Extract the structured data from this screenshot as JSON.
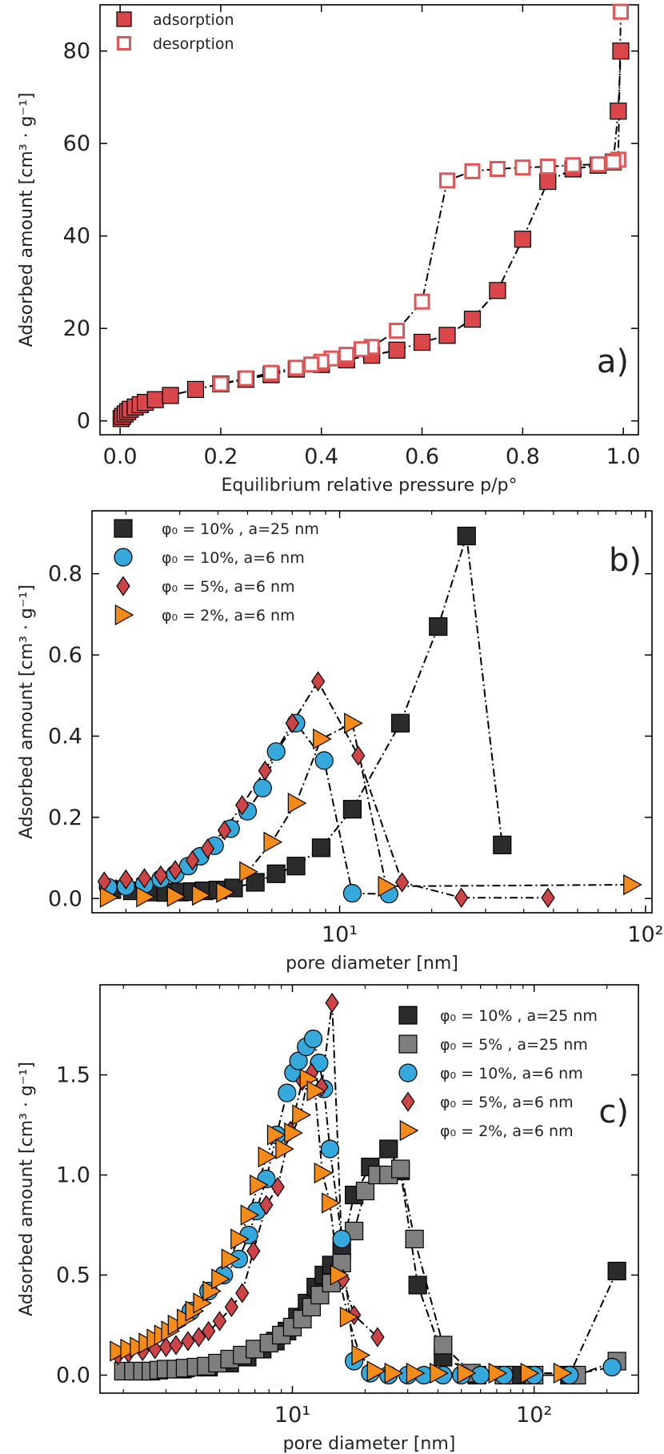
{
  "colors": {
    "adsorption": "#d9474b",
    "desorption_edge": "#e05555",
    "black": "#2b2b2b",
    "grey": "#7f7f7f",
    "blue": "#35a9dc",
    "red": "#cd4448",
    "orange": "#f48a17"
  },
  "chart_data": [
    {
      "type": "scatter",
      "panel_label": "a)",
      "xlabel": "Equilibrium relative pressure p/p°",
      "ylabel": "Adsorbed amount  [cm³ · g⁻¹]",
      "xscale": "linear",
      "xlim": [
        -0.04,
        1.03
      ],
      "ylim": [
        -3,
        90
      ],
      "xticks": [
        0.0,
        0.2,
        0.4,
        0.6,
        0.8,
        1.0
      ],
      "xtick_labels": [
        "0.0",
        "0.2",
        "0.4",
        "0.6",
        "0.8",
        "1.0"
      ],
      "yticks": [
        0,
        20,
        40,
        60,
        80
      ],
      "ytick_labels": [
        "0",
        "20",
        "40",
        "60",
        "80"
      ],
      "legend_position": "top-left",
      "series": [
        {
          "name": "adsorption",
          "marker": "square-filled",
          "color": "#d9474b",
          "x": [
            0.002,
            0.005,
            0.01,
            0.015,
            0.02,
            0.03,
            0.04,
            0.05,
            0.07,
            0.1,
            0.15,
            0.2,
            0.25,
            0.3,
            0.35,
            0.4,
            0.45,
            0.5,
            0.55,
            0.6,
            0.65,
            0.7,
            0.75,
            0.8,
            0.85,
            0.9,
            0.95,
            0.98,
            0.99,
            0.995
          ],
          "y": [
            0.5,
            1.0,
            1.5,
            2.0,
            2.5,
            3.0,
            3.5,
            4.0,
            4.6,
            5.5,
            6.8,
            8.0,
            9.0,
            10.0,
            11.2,
            12.2,
            13.2,
            14.2,
            15.3,
            17.0,
            18.5,
            22.0,
            28.2,
            39.3,
            51.8,
            54.5,
            55.3,
            56.0,
            67.0,
            80.0
          ]
        },
        {
          "name": "desorption",
          "marker": "square-open",
          "color": "#e05555",
          "x": [
            0.995,
            0.99,
            0.98,
            0.95,
            0.9,
            0.85,
            0.8,
            0.75,
            0.7,
            0.65,
            0.6,
            0.55,
            0.5,
            0.48,
            0.45,
            0.42,
            0.4,
            0.38,
            0.35,
            0.3,
            0.25,
            0.2
          ],
          "y": [
            88.5,
            56.5,
            56.0,
            55.5,
            55.3,
            55.0,
            54.8,
            54.5,
            54.0,
            52.0,
            25.8,
            19.5,
            16.0,
            15.5,
            14.3,
            13.5,
            12.8,
            12.2,
            11.5,
            10.4,
            9.2,
            8.0
          ]
        }
      ]
    },
    {
      "type": "scatter",
      "panel_label": "b)",
      "xlabel": "pore diameter  [nm]",
      "ylabel": "Adsorbed amount  [cm³ · g⁻¹]",
      "xscale": "log",
      "xlim": [
        1.55,
        105
      ],
      "ylim": [
        -0.035,
        0.955
      ],
      "xticks": [
        10,
        100
      ],
      "xtick_labels": [
        "10¹",
        "10²"
      ],
      "yticks": [
        0.0,
        0.2,
        0.4,
        0.6,
        0.8
      ],
      "ytick_labels": [
        "0.0",
        "0.2",
        "0.4",
        "0.6",
        "0.8"
      ],
      "legend_position": "top-left",
      "series": [
        {
          "name": "φ₀ = 10% , a=25 nm",
          "marker": "square",
          "color": "#2b2b2b",
          "x": [
            1.8,
            2.1,
            2.4,
            2.7,
            3.0,
            3.3,
            3.6,
            4.0,
            4.5,
            5.3,
            6.2,
            7.2,
            8.7,
            11.0,
            15.8,
            21.0,
            26.0,
            34.0
          ],
          "y": [
            0.022,
            0.019,
            0.016,
            0.015,
            0.016,
            0.017,
            0.019,
            0.021,
            0.026,
            0.04,
            0.061,
            0.08,
            0.125,
            0.22,
            0.432,
            0.67,
            0.893,
            0.132
          ]
        },
        {
          "name": "φ₀ = 10%, a=6 nm",
          "marker": "circle",
          "color": "#35a9dc",
          "x": [
            1.75,
            2.0,
            2.3,
            2.6,
            2.9,
            3.2,
            3.5,
            3.9,
            4.4,
            5.0,
            5.6,
            6.2,
            7.2,
            8.9,
            11.0,
            14.5
          ],
          "y": [
            0.028,
            0.03,
            0.035,
            0.048,
            0.06,
            0.08,
            0.104,
            0.13,
            0.172,
            0.215,
            0.272,
            0.362,
            0.432,
            0.34,
            0.013,
            0.011
          ]
        },
        {
          "name": "φ₀ = 5%, a=6 nm",
          "marker": "diamond",
          "color": "#cd4448",
          "x": [
            1.7,
            2.0,
            2.3,
            2.6,
            2.9,
            3.3,
            3.7,
            4.2,
            4.8,
            5.7,
            7.0,
            8.5,
            11.5,
            16.0,
            25.0,
            48.0
          ],
          "y": [
            0.042,
            0.047,
            0.05,
            0.057,
            0.07,
            0.094,
            0.123,
            0.168,
            0.23,
            0.315,
            0.432,
            0.535,
            0.352,
            0.04,
            0.002,
            0.002
          ]
        },
        {
          "name": "φ₀ = 2%, a=6 nm",
          "marker": "triangle-right",
          "color": "#f48a17",
          "x": [
            1.75,
            2.3,
            2.9,
            3.5,
            4.2,
            5.0,
            6.0,
            7.2,
            8.7,
            11.0,
            14.2,
            90.0
          ],
          "y": [
            0.003,
            0.004,
            0.005,
            0.008,
            0.015,
            0.066,
            0.139,
            0.235,
            0.393,
            0.432,
            0.03,
            0.034
          ]
        }
      ]
    },
    {
      "type": "scatter",
      "panel_label": "c)",
      "xlabel": "pore diameter  [nm]",
      "ylabel": "Adsorbed amount  [cm³ · g⁻¹]",
      "xscale": "log",
      "xlim": [
        1.6,
        270
      ],
      "ylim": [
        -0.09,
        1.95
      ],
      "xticks": [
        10,
        100
      ],
      "xtick_labels": [
        "10¹",
        "10²"
      ],
      "yticks": [
        0.0,
        0.5,
        1.0,
        1.5
      ],
      "ytick_labels": [
        "0.0",
        "0.5",
        "1.0",
        "1.5"
      ],
      "legend_position": "top-right",
      "series": [
        {
          "name": "φ₀ = 10% , a=25 nm",
          "marker": "square",
          "color": "#2b2b2b",
          "x": [
            2.5,
            3.5,
            4.5,
            5.5,
            6.5,
            7.5,
            8.5,
            9.5,
            10.5,
            11.5,
            12.5,
            13.5,
            14.5,
            16,
            18,
            21,
            25,
            28,
            33,
            42,
            58,
            85,
            140,
            220
          ],
          "y": [
            0.02,
            0.03,
            0.04,
            0.06,
            0.09,
            0.13,
            0.17,
            0.22,
            0.29,
            0.36,
            0.44,
            0.5,
            0.55,
            0.62,
            0.9,
            1.04,
            1.13,
            1.02,
            0.45,
            0.09,
            0.0,
            0.0,
            0.0,
            0.52
          ]
        },
        {
          "name": "φ₀ = 5% , a=25 nm",
          "marker": "square",
          "color": "#7f7f7f",
          "x": [
            2.0,
            2.2,
            2.4,
            2.6,
            2.8,
            3.0,
            3.3,
            3.6,
            4.0,
            4.4,
            4.9,
            5.5,
            6.2,
            7.0,
            8.0,
            9.0,
            10.0,
            11.0,
            12.0,
            13.0,
            14.5,
            16.0,
            18.0,
            20.0,
            22.5,
            25.0,
            28.0,
            32.0,
            42.0,
            55.0,
            75.0,
            100.0,
            150.0,
            220.0
          ],
          "y": [
            0.02,
            0.02,
            0.02,
            0.02,
            0.025,
            0.03,
            0.03,
            0.035,
            0.04,
            0.045,
            0.06,
            0.08,
            0.1,
            0.13,
            0.16,
            0.2,
            0.24,
            0.28,
            0.34,
            0.4,
            0.46,
            0.56,
            0.72,
            0.92,
            1.0,
            1.0,
            1.03,
            0.68,
            0.15,
            0.01,
            0.0,
            0.0,
            0.0,
            0.07
          ]
        },
        {
          "name": "φ₀ = 10%, a=6 nm",
          "marker": "circle",
          "color": "#35a9dc",
          "x": [
            3.8,
            4.5,
            5.2,
            6.0,
            6.6,
            7.1,
            7.8,
            8.6,
            9.5,
            10.1,
            10.6,
            11.4,
            12.2,
            12.9,
            13.5,
            14.3,
            16.0,
            18.0,
            21.0,
            25.0,
            30.0,
            35.0,
            42.0,
            50.0,
            60.0,
            75.0,
            100.0,
            140.0,
            210.0
          ],
          "y": [
            0.32,
            0.42,
            0.5,
            0.58,
            0.7,
            0.82,
            0.98,
            1.2,
            1.41,
            1.51,
            1.57,
            1.64,
            1.68,
            1.56,
            1.43,
            1.13,
            0.68,
            0.07,
            0.01,
            0.0,
            0.0,
            0.0,
            0.0,
            0.0,
            0.0,
            0.0,
            0.0,
            0.0,
            0.04
          ]
        },
        {
          "name": "φ₀ = 5%, a=6 nm",
          "marker": "diamond",
          "color": "#cd4448",
          "x": [
            1.9,
            2.1,
            2.4,
            2.7,
            3.0,
            3.3,
            3.7,
            4.1,
            4.5,
            5.0,
            5.6,
            6.2,
            6.9,
            7.8,
            8.7,
            9.8,
            11.0,
            12.0,
            13.2,
            14.6,
            16.2,
            18.0,
            22.5
          ],
          "y": [
            0.1,
            0.11,
            0.12,
            0.13,
            0.14,
            0.15,
            0.17,
            0.19,
            0.22,
            0.27,
            0.34,
            0.41,
            0.62,
            0.85,
            0.94,
            1.22,
            1.47,
            1.51,
            1.44,
            1.86,
            0.48,
            0.3,
            0.19
          ]
        },
        {
          "name": "φ₀ = 2%, a=6 nm",
          "marker": "triangle-right",
          "color": "#f48a17",
          "x": [
            1.9,
            2.1,
            2.3,
            2.5,
            2.7,
            2.9,
            3.1,
            3.3,
            3.6,
            3.9,
            4.2,
            4.6,
            5.0,
            5.5,
            6.0,
            6.6,
            7.2,
            7.8,
            8.5,
            9.2,
            10.0,
            10.8,
            11.6,
            12.4,
            13.3,
            14.3,
            15.5,
            17.0,
            19.0,
            22.0,
            26.0,
            32.0,
            40.0,
            52.0,
            70.0,
            95.0,
            130.0
          ],
          "y": [
            0.12,
            0.13,
            0.14,
            0.16,
            0.18,
            0.2,
            0.22,
            0.25,
            0.28,
            0.32,
            0.36,
            0.42,
            0.48,
            0.58,
            0.68,
            0.8,
            0.95,
            1.09,
            1.2,
            1.13,
            1.21,
            1.3,
            1.48,
            1.42,
            1.01,
            0.86,
            0.5,
            0.29,
            0.1,
            0.02,
            0.01,
            0.01,
            0.01,
            0.01,
            0.01,
            0.01,
            0.01
          ]
        }
      ]
    }
  ]
}
